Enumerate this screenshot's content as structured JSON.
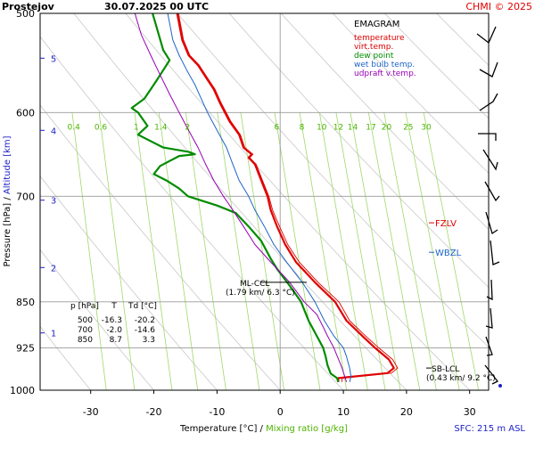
{
  "header": {
    "station": "Prostejov",
    "datetime": "30.07.2025 00 UTC",
    "copyright": "CHMI © 2025"
  },
  "chart_data": {
    "type": "line",
    "title": "EMAGRAM",
    "xlabel": "Temperature [°C]",
    "xlabel_sep": "/",
    "xlabel2": "Mixing ratio [g/kg]",
    "ylabel": "Pressure [hPa]",
    "ylabel_sep": "/",
    "ylabel2": "Altitude [km]",
    "xlim": [
      -38,
      33
    ],
    "ylim": [
      1000,
      500
    ],
    "y_scale": "log",
    "x_ticks": [
      -30,
      -20,
      -10,
      0,
      10,
      20,
      30
    ],
    "p_ticks": [
      500,
      600,
      700,
      850,
      925,
      1000
    ],
    "altitude_ticks": [
      {
        "label": "1",
        "p": 900
      },
      {
        "label": "2",
        "p": 798
      },
      {
        "label": "3",
        "p": 705
      },
      {
        "label": "4",
        "p": 620
      },
      {
        "label": "5",
        "p": 543
      }
    ],
    "mixing_ratio_values": [
      0.4,
      0.6,
      1,
      1.4,
      2,
      3,
      4,
      6,
      8,
      10,
      12,
      14,
      17,
      20,
      25,
      30
    ],
    "mixing_ratio_labels": [
      "0.4",
      "0.6",
      "1",
      "1.4",
      "2",
      "6",
      "8",
      "10",
      "12",
      "14",
      "17",
      "20",
      "25",
      "30"
    ],
    "mixing_ratio_label_p": 615,
    "legend": [
      {
        "name": "temperature",
        "color": "#e00000"
      },
      {
        "name": "virt.temp.",
        "color": "#e00000"
      },
      {
        "name": "dew point",
        "color": "#008c00"
      },
      {
        "name": "wet bulb temp.",
        "color": "#1e64c8"
      },
      {
        "name": "udpraft v.temp.",
        "color": "#9600b4"
      }
    ],
    "series": [
      {
        "name": "temperature",
        "color": "#e00000",
        "points": [
          [
            9.2,
            985
          ],
          [
            9.2,
            978
          ],
          [
            17.0,
            969
          ],
          [
            18.0,
            960
          ],
          [
            17.2,
            945
          ],
          [
            15.0,
            925
          ],
          [
            13.0,
            905
          ],
          [
            10.5,
            880
          ],
          [
            8.7,
            850
          ],
          [
            5.5,
            820
          ],
          [
            2.5,
            790
          ],
          [
            0.8,
            765
          ],
          [
            -0.5,
            740
          ],
          [
            -1.5,
            718
          ],
          [
            -2.0,
            700
          ],
          [
            -3.0,
            680
          ],
          [
            -4.0,
            660
          ],
          [
            -5.0,
            652
          ],
          [
            -4.5,
            648
          ],
          [
            -5.8,
            640
          ],
          [
            -6.5,
            625
          ],
          [
            -8.0,
            610
          ],
          [
            -9.5,
            590
          ],
          [
            -10.5,
            575
          ],
          [
            -12.0,
            560
          ],
          [
            -13.0,
            550
          ],
          [
            -14.5,
            540
          ],
          [
            -15.5,
            525
          ],
          [
            -16.3,
            500
          ]
        ]
      },
      {
        "name": "virt.temp.",
        "color": "#e00000",
        "points": [
          [
            9.8,
            985
          ],
          [
            9.8,
            978
          ],
          [
            17.6,
            969
          ],
          [
            18.6,
            960
          ],
          [
            17.8,
            945
          ],
          [
            15.6,
            925
          ],
          [
            13.5,
            905
          ],
          [
            11.0,
            880
          ],
          [
            9.3,
            850
          ],
          [
            6.0,
            820
          ],
          [
            3.0,
            790
          ],
          [
            1.2,
            765
          ],
          [
            -0.1,
            740
          ],
          [
            -1.2,
            718
          ],
          [
            -1.8,
            700
          ],
          [
            -2.8,
            680
          ],
          [
            -3.8,
            660
          ],
          [
            -4.8,
            652
          ],
          [
            -4.3,
            648
          ],
          [
            -5.6,
            640
          ],
          [
            -6.3,
            625
          ],
          [
            -7.8,
            610
          ],
          [
            -9.3,
            590
          ],
          [
            -10.3,
            575
          ],
          [
            -11.8,
            560
          ],
          [
            -12.8,
            550
          ],
          [
            -14.3,
            540
          ],
          [
            -15.3,
            525
          ],
          [
            -16.1,
            500
          ]
        ]
      },
      {
        "name": "dew point",
        "color": "#008c00",
        "points": [
          [
            9.2,
            985
          ],
          [
            9.0,
            978
          ],
          [
            8.0,
            970
          ],
          [
            7.5,
            955
          ],
          [
            7.2,
            940
          ],
          [
            6.8,
            925
          ],
          [
            5.8,
            905
          ],
          [
            4.5,
            880
          ],
          [
            3.3,
            850
          ],
          [
            1.5,
            825
          ],
          [
            -0.5,
            800
          ],
          [
            -1.5,
            785
          ],
          [
            -3.0,
            760
          ],
          [
            -5.0,
            740
          ],
          [
            -7.0,
            722
          ],
          [
            -10.0,
            712
          ],
          [
            -14.6,
            700
          ],
          [
            -16.0,
            690
          ],
          [
            -18.0,
            680
          ],
          [
            -20.0,
            672
          ],
          [
            -19.0,
            662
          ],
          [
            -16.0,
            650
          ],
          [
            -13.5,
            648
          ],
          [
            -14.5,
            645
          ],
          [
            -18.5,
            640
          ],
          [
            -22.5,
            625
          ],
          [
            -21.0,
            615
          ],
          [
            -22.5,
            600
          ],
          [
            -23.5,
            595
          ],
          [
            -21.5,
            585
          ],
          [
            -20.5,
            575
          ],
          [
            -19.5,
            565
          ],
          [
            -18.5,
            555
          ],
          [
            -17.5,
            545
          ],
          [
            -18.5,
            535
          ],
          [
            -20.2,
            500
          ]
        ]
      },
      {
        "name": "wet bulb temp.",
        "color": "#1e64c8",
        "points": [
          [
            11.0,
            985
          ],
          [
            11.2,
            975
          ],
          [
            11.0,
            960
          ],
          [
            10.5,
            940
          ],
          [
            10.0,
            925
          ],
          [
            8.5,
            905
          ],
          [
            7.0,
            880
          ],
          [
            5.5,
            850
          ],
          [
            3.5,
            820
          ],
          [
            1.0,
            790
          ],
          [
            -1.0,
            765
          ],
          [
            -2.5,
            740
          ],
          [
            -4.0,
            718
          ],
          [
            -5.0,
            700
          ],
          [
            -6.5,
            680
          ],
          [
            -7.5,
            660
          ],
          [
            -8.5,
            640
          ],
          [
            -10.0,
            620
          ],
          [
            -11.5,
            600
          ],
          [
            -12.5,
            585
          ],
          [
            -13.5,
            570
          ],
          [
            -14.8,
            555
          ],
          [
            -16.0,
            540
          ],
          [
            -17.0,
            525
          ],
          [
            -17.8,
            500
          ]
        ]
      },
      {
        "name": "udpraft v.temp.",
        "color": "#9600b4",
        "points": [
          [
            10.5,
            985
          ],
          [
            9.8,
            960
          ],
          [
            8.5,
            925
          ],
          [
            7.5,
            905
          ],
          [
            6.8,
            890
          ],
          [
            5.8,
            870
          ],
          [
            3.8,
            850
          ],
          [
            1.5,
            820
          ],
          [
            -1.5,
            790
          ],
          [
            -4.0,
            765
          ],
          [
            -5.8,
            740
          ],
          [
            -7.5,
            718
          ],
          [
            -9.0,
            700
          ],
          [
            -10.5,
            680
          ],
          [
            -11.8,
            660
          ],
          [
            -13.0,
            640
          ],
          [
            -14.5,
            620
          ],
          [
            -16.0,
            600
          ],
          [
            -17.5,
            580
          ],
          [
            -19.0,
            560
          ],
          [
            -20.5,
            540
          ],
          [
            -22.0,
            520
          ],
          [
            -23.0,
            500
          ]
        ]
      }
    ],
    "annotations": [
      {
        "label": "FZLV",
        "p": 735,
        "color": "#e00000"
      },
      {
        "label": "WBZL",
        "p": 776,
        "color": "#1e64c8"
      },
      {
        "label": "ML-CCL",
        "sub": "(1.79 km/ 6.3 °C)",
        "p": 820
      },
      {
        "label": "SB-LCL",
        "sub": "(0.43 km/ 9.2 °C)",
        "p": 960
      }
    ],
    "table": {
      "headers": [
        "p [hPa]",
        "T",
        "Td [°C]"
      ],
      "rows": [
        [
          "500",
          "-16.3",
          "-20.2"
        ],
        [
          "700",
          "-2.0",
          "-14.6"
        ],
        [
          "850",
          "8.7",
          "3.3"
        ]
      ]
    },
    "wind_barbs_visible": true,
    "sfc_label": "SFC: 215 m ASL"
  }
}
